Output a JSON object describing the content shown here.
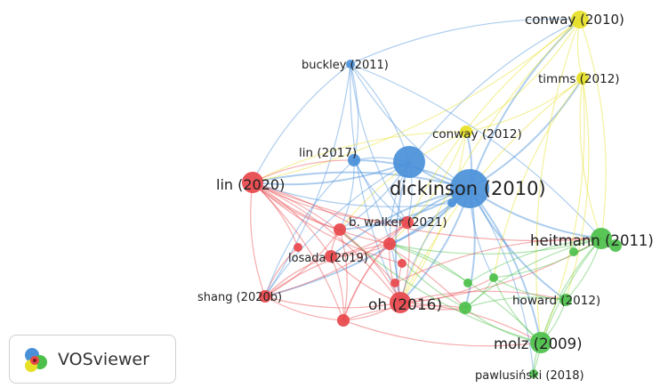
{
  "app": {
    "name": "VOSviewer"
  },
  "clusters": {
    "red": "#e8474b",
    "green": "#4cc04a",
    "blue": "#4a90d9",
    "yellow": "#e6e026"
  },
  "nodes": [
    {
      "id": "conway2010",
      "label": "conway (2010)",
      "cluster": "yellow",
      "weight": 3
    },
    {
      "id": "buckley2011",
      "label": "buckley (2011)",
      "cluster": "blue",
      "weight": 1
    },
    {
      "id": "timms2012",
      "label": "timms (2012)",
      "cluster": "yellow",
      "weight": 2
    },
    {
      "id": "conway2012",
      "label": "conway (2012)",
      "cluster": "yellow",
      "weight": 2
    },
    {
      "id": "lin2017",
      "label": "lin (2017)",
      "cluster": "blue",
      "weight": 2
    },
    {
      "id": "blueHub",
      "label": "",
      "cluster": "blue",
      "weight": 5
    },
    {
      "id": "lin2020",
      "label": "lin (2020)",
      "cluster": "red",
      "weight": 4
    },
    {
      "id": "dickinson2010",
      "label": "dickinson (2010)",
      "cluster": "blue",
      "weight": 7
    },
    {
      "id": "bwalker2021",
      "label": "b. walker (2021)",
      "cluster": "red",
      "weight": 2
    },
    {
      "id": "heitmann2011",
      "label": "heitmann (2011)",
      "cluster": "green",
      "weight": 4
    },
    {
      "id": "losada2019",
      "label": "losada (2019)",
      "cluster": "red",
      "weight": 2
    },
    {
      "id": "howard2012",
      "label": "howard (2012)",
      "cluster": "green",
      "weight": 2
    },
    {
      "id": "shang2020b",
      "label": "shang (2020b)",
      "cluster": "red",
      "weight": 2
    },
    {
      "id": "oh2016",
      "label": "oh (2016)",
      "cluster": "red",
      "weight": 4
    },
    {
      "id": "molz2009",
      "label": "molz (2009)",
      "cluster": "green",
      "weight": 4
    },
    {
      "id": "pawlusinski2018",
      "label": "pawlusiński (2018)",
      "cluster": "green",
      "weight": 1
    },
    {
      "id": "r1",
      "label": "",
      "cluster": "red",
      "weight": 2
    },
    {
      "id": "r2",
      "label": "",
      "cluster": "red",
      "weight": 2
    },
    {
      "id": "r3",
      "label": "",
      "cluster": "red",
      "weight": 1
    },
    {
      "id": "r4",
      "label": "",
      "cluster": "red",
      "weight": 1
    },
    {
      "id": "r5",
      "label": "",
      "cluster": "red",
      "weight": 2
    },
    {
      "id": "r6",
      "label": "",
      "cluster": "red",
      "weight": 1
    },
    {
      "id": "g1",
      "label": "",
      "cluster": "green",
      "weight": 2
    },
    {
      "id": "g2",
      "label": "",
      "cluster": "green",
      "weight": 1
    },
    {
      "id": "g3",
      "label": "",
      "cluster": "green",
      "weight": 1
    },
    {
      "id": "g4",
      "label": "",
      "cluster": "green",
      "weight": 2
    },
    {
      "id": "g5",
      "label": "",
      "cluster": "green",
      "weight": 1
    },
    {
      "id": "b1",
      "label": "",
      "cluster": "blue",
      "weight": 1
    }
  ]
}
